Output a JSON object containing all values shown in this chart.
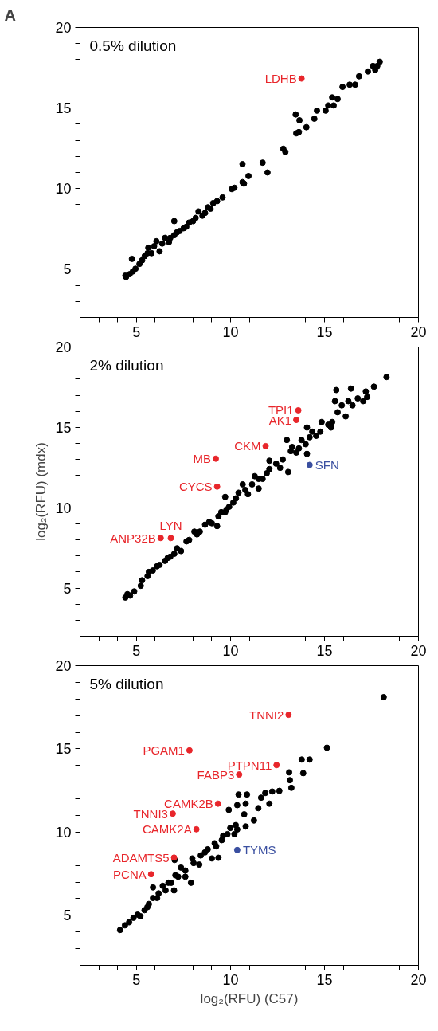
{
  "chart_data": [
    {
      "type": "scatter",
      "title": "0.5% dilution",
      "xlim": [
        2,
        20
      ],
      "ylim": [
        2,
        20
      ],
      "xticks": [
        {
          "value": 3,
          "label": null
        },
        {
          "value": 4,
          "label": null
        },
        5,
        {
          "value": 6,
          "label": null
        },
        {
          "value": 7,
          "label": null
        },
        {
          "value": 8,
          "label": null
        },
        {
          "value": 9,
          "label": null
        },
        10,
        {
          "value": 11,
          "label": null
        },
        {
          "value": 12,
          "label": null
        },
        {
          "value": 13,
          "label": null
        },
        {
          "value": 14,
          "label": null
        },
        15,
        {
          "value": 16,
          "label": null
        },
        {
          "value": 17,
          "label": null
        },
        {
          "value": 18,
          "label": null
        },
        {
          "value": 19,
          "label": null
        },
        20
      ],
      "yticks": [
        {
          "value": 3,
          "label": null
        },
        {
          "value": 4,
          "label": null
        },
        5,
        {
          "value": 6,
          "label": null
        },
        {
          "value": 7,
          "label": null
        },
        {
          "value": 8,
          "label": null
        },
        {
          "value": 9,
          "label": null
        },
        10,
        {
          "value": 11,
          "label": null
        },
        {
          "value": 12,
          "label": null
        },
        {
          "value": 13,
          "label": null
        },
        {
          "value": 14,
          "label": null
        },
        15,
        {
          "value": 16,
          "label": null
        },
        {
          "value": 17,
          "label": null
        },
        {
          "value": 18,
          "label": null
        },
        {
          "value": 19,
          "label": null
        },
        20
      ],
      "marker": "circle",
      "series": [
        {
          "color": "#000000",
          "x": [
            4.41,
            4.45,
            4.64,
            4.76,
            4.81,
            4.95,
            5.16,
            5.3,
            5.44,
            5.59,
            5.63,
            5.8,
            5.94,
            6.06,
            6.23,
            6.37,
            6.52,
            6.73,
            6.8,
            7.01,
            7.01,
            7.15,
            7.3,
            7.51,
            7.65,
            7.8,
            8.01,
            8.15,
            8.3,
            8.51,
            8.65,
            8.8,
            8.94,
            9.08,
            9.29,
            9.58,
            10.07,
            10.21,
            10.64,
            10.64,
            10.72,
            10.96,
            11.71,
            11.97,
            12.81,
            12.92,
            13.47,
            13.5,
            13.64,
            13.67,
            14.04,
            14.46,
            14.6,
            15.06,
            15.2,
            15.41,
            15.49,
            15.7,
            15.96,
            16.34,
            16.63,
            16.84,
            17.31,
            17.58,
            17.7,
            17.81,
            17.94
          ],
          "values": [
            4.6,
            4.52,
            4.69,
            5.64,
            4.86,
            5.03,
            5.33,
            5.55,
            5.81,
            5.99,
            6.33,
            5.99,
            6.42,
            6.73,
            6.11,
            6.59,
            6.94,
            6.68,
            6.94,
            7.98,
            7.11,
            7.28,
            7.37,
            7.54,
            7.63,
            7.89,
            7.98,
            8.18,
            8.58,
            8.32,
            8.49,
            8.84,
            8.75,
            9.1,
            9.22,
            9.45,
            9.97,
            10.05,
            11.52,
            10.4,
            10.31,
            10.78,
            11.61,
            11.0,
            12.47,
            12.27,
            14.6,
            13.43,
            13.51,
            14.24,
            13.81,
            14.34,
            14.84,
            14.84,
            15.16,
            15.66,
            15.16,
            15.56,
            16.31,
            16.45,
            16.45,
            16.97,
            17.27,
            17.61,
            17.37,
            17.61,
            17.87
          ]
        },
        {
          "color": "#e8262b",
          "x": [
            13.78
          ],
          "values": [
            16.83
          ]
        }
      ],
      "annotations": [
        "A",
        {
          "text": "LDHB",
          "x": 13.78,
          "y": 16.83
        }
      ]
    },
    {
      "type": "scatter",
      "title": "2% dilution",
      "ylabel": "log₂(RFU) (mdx)",
      "xlim": [
        2,
        20
      ],
      "ylim": [
        2,
        20
      ],
      "xticks": [
        {
          "value": 3,
          "label": null
        },
        {
          "value": 4,
          "label": null
        },
        5,
        {
          "value": 6,
          "label": null
        },
        {
          "value": 7,
          "label": null
        },
        {
          "value": 8,
          "label": null
        },
        {
          "value": 9,
          "label": null
        },
        10,
        {
          "value": 11,
          "label": null
        },
        {
          "value": 12,
          "label": null
        },
        {
          "value": 13,
          "label": null
        },
        {
          "value": 14,
          "label": null
        },
        15,
        {
          "value": 16,
          "label": null
        },
        {
          "value": 17,
          "label": null
        },
        {
          "value": 18,
          "label": null
        },
        {
          "value": 19,
          "label": null
        },
        20
      ],
      "yticks": [
        {
          "value": 3,
          "label": null
        },
        {
          "value": 4,
          "label": null
        },
        5,
        {
          "value": 6,
          "label": null
        },
        {
          "value": 7,
          "label": null
        },
        {
          "value": 8,
          "label": null
        },
        {
          "value": 9,
          "label": null
        },
        10,
        {
          "value": 11,
          "label": null
        },
        {
          "value": 12,
          "label": null
        },
        {
          "value": 13,
          "label": null
        },
        {
          "value": 14,
          "label": null
        },
        15,
        {
          "value": 16,
          "label": null
        },
        {
          "value": 17,
          "label": null
        },
        {
          "value": 18,
          "label": null
        },
        {
          "value": 19,
          "label": null
        },
        20
      ],
      "marker": "circle",
      "series": [
        {
          "color": "#000000",
          "x": [
            4.41,
            4.52,
            4.66,
            4.88,
            5.23,
            5.3,
            5.59,
            5.66,
            5.87,
            6.09,
            6.23,
            6.52,
            6.66,
            6.8,
            7.01,
            7.16,
            7.37,
            7.66,
            7.8,
            8.08,
            8.22,
            8.37,
            8.65,
            8.87,
            9.01,
            9.29,
            9.36,
            9.51,
            9.72,
            9.72,
            9.79,
            9.93,
            10.15,
            10.29,
            10.43,
            10.65,
            10.79,
            10.93,
            11.15,
            11.29,
            11.5,
            11.5,
            11.71,
            11.93,
            12.07,
            12.07,
            12.43,
            12.64,
            12.78,
            13.0,
            13.07,
            13.21,
            13.28,
            13.5,
            13.64,
            13.78,
            14.0,
            14.07,
            14.07,
            14.21,
            14.35,
            14.56,
            14.78,
            14.85,
            15.2,
            15.35,
            15.41,
            15.56,
            15.63,
            15.7,
            15.92,
            16.13,
            16.27,
            16.41,
            16.49,
            16.77,
            17.06,
            17.2,
            17.27,
            17.63,
            18.3
          ],
          "values": [
            4.41,
            4.62,
            4.53,
            4.79,
            5.14,
            5.48,
            5.74,
            6.0,
            6.09,
            6.35,
            6.44,
            6.69,
            6.87,
            6.95,
            7.13,
            7.47,
            7.3,
            7.9,
            7.99,
            8.51,
            8.34,
            8.51,
            8.94,
            9.11,
            9.03,
            8.85,
            9.46,
            9.72,
            9.72,
            10.67,
            9.89,
            10.06,
            10.32,
            10.58,
            10.93,
            11.45,
            11.1,
            10.84,
            11.45,
            11.96,
            11.19,
            11.79,
            11.79,
            12.14,
            12.92,
            12.4,
            12.74,
            12.48,
            13.0,
            14.21,
            12.22,
            13.52,
            13.78,
            13.43,
            13.69,
            14.21,
            13.95,
            14.99,
            13.35,
            14.38,
            14.73,
            14.47,
            14.73,
            15.33,
            15.16,
            14.99,
            15.33,
            16.63,
            17.32,
            15.94,
            16.37,
            15.68,
            16.63,
            17.41,
            16.37,
            16.8,
            16.63,
            17.23,
            16.89,
            17.53,
            18.13
          ]
        },
        {
          "color": "#e8262b",
          "x": [
            13.61,
            13.5,
            11.87,
            9.22,
            9.29,
            6.83,
            6.29
          ],
          "values": [
            16.06,
            15.46,
            13.83,
            13.05,
            11.31,
            8.11,
            8.11
          ]
        },
        {
          "color": "#3a4fa0",
          "x": [
            14.21
          ],
          "values": [
            12.66
          ]
        }
      ],
      "annotations": [
        {
          "text": "TPI1",
          "x": 13.61,
          "y": 16.06
        },
        {
          "text": "AK1",
          "x": 13.5,
          "y": 15.46
        },
        {
          "text": "CKM",
          "x": 11.87,
          "y": 13.83
        },
        {
          "text": "MB",
          "x": 9.22,
          "y": 13.05
        },
        {
          "text": "CYCS",
          "x": 9.29,
          "y": 11.31
        },
        {
          "text": "LYN",
          "x": 6.83,
          "y": 8.11
        },
        {
          "text": "ANP32B",
          "x": 6.29,
          "y": 8.11
        },
        {
          "text": "SFN",
          "x": 14.21,
          "y": 12.66
        }
      ]
    },
    {
      "type": "scatter",
      "title": "5% dilution",
      "xlabel": "log₂(RFU) (C57)",
      "xlim": [
        2,
        20
      ],
      "ylim": [
        2,
        20
      ],
      "xticks": [
        {
          "value": 3,
          "label": null
        },
        {
          "value": 4,
          "label": null
        },
        5,
        {
          "value": 6,
          "label": null
        },
        {
          "value": 7,
          "label": null
        },
        {
          "value": 8,
          "label": null
        },
        {
          "value": 9,
          "label": null
        },
        10,
        {
          "value": 11,
          "label": null
        },
        {
          "value": 12,
          "label": null
        },
        {
          "value": 13,
          "label": null
        },
        {
          "value": 14,
          "label": null
        },
        15,
        {
          "value": 16,
          "label": null
        },
        {
          "value": 17,
          "label": null
        },
        {
          "value": 18,
          "label": null
        },
        {
          "value": 19,
          "label": null
        },
        20
      ],
      "yticks": [
        {
          "value": 3,
          "label": null
        },
        {
          "value": 4,
          "label": null
        },
        5,
        {
          "value": 6,
          "label": null
        },
        {
          "value": 7,
          "label": null
        },
        {
          "value": 8,
          "label": null
        },
        {
          "value": 9,
          "label": null
        },
        10,
        {
          "value": 11,
          "label": null
        },
        {
          "value": 12,
          "label": null
        },
        {
          "value": 13,
          "label": null
        },
        {
          "value": 14,
          "label": null
        },
        15,
        {
          "value": 16,
          "label": null
        },
        {
          "value": 17,
          "label": null
        },
        {
          "value": 18,
          "label": null
        },
        {
          "value": 19,
          "label": null
        },
        20
      ],
      "marker": "circle",
      "series": [
        {
          "color": "#000000",
          "x": [
            4.13,
            4.39,
            4.61,
            4.84,
            5.06,
            5.21,
            5.43,
            5.58,
            5.66,
            5.88,
            5.88,
            6.1,
            6.18,
            6.4,
            6.55,
            6.7,
            6.85,
            7.0,
            7.03,
            7.07,
            7.22,
            7.37,
            7.6,
            7.6,
            7.9,
            7.97,
            8.04,
            8.34,
            8.42,
            8.64,
            8.79,
            9.01,
            9.16,
            9.24,
            9.36,
            9.54,
            9.61,
            9.84,
            9.91,
            9.99,
            10.21,
            10.28,
            10.36,
            10.36,
            10.43,
            10.73,
            10.81,
            10.81,
            10.88,
            11.25,
            11.48,
            11.63,
            11.85,
            12.07,
            12.22,
            12.6,
            13.12,
            13.16,
            13.24,
            13.79,
            13.87,
            14.21,
            15.13,
            18.15
          ],
          "values": [
            4.12,
            4.4,
            4.58,
            4.85,
            5.04,
            4.95,
            5.31,
            5.49,
            5.68,
            6.04,
            6.68,
            6.04,
            6.32,
            6.77,
            6.5,
            6.96,
            6.96,
            6.5,
            8.33,
            7.41,
            7.32,
            7.87,
            7.32,
            7.69,
            6.96,
            8.42,
            8.14,
            8.05,
            8.6,
            8.78,
            8.97,
            8.42,
            9.33,
            9.15,
            8.46,
            9.52,
            9.79,
            9.88,
            11.34,
            10.25,
            9.88,
            10.42,
            11.62,
            10.16,
            12.26,
            11.07,
            10.34,
            11.71,
            12.26,
            10.7,
            11.44,
            12.07,
            12.35,
            11.71,
            12.44,
            12.48,
            13.59,
            13.12,
            12.66,
            14.36,
            13.54,
            14.36,
            15.07,
            18.11
          ]
        },
        {
          "color": "#e8262b",
          "x": [
            13.09,
            7.82,
            12.45,
            10.46,
            9.34,
            6.93,
            8.19,
            7.0,
            5.78
          ],
          "values": [
            17.05,
            14.91,
            14.03,
            13.46,
            11.71,
            11.11,
            10.17,
            8.47,
            7.47
          ]
        },
        {
          "color": "#3a4fa0",
          "x": [
            10.36
          ],
          "values": [
            8.93
          ]
        }
      ],
      "annotations": [
        {
          "text": "TNNI2",
          "x": 13.09,
          "y": 17.05
        },
        {
          "text": "PGAM1",
          "x": 7.82,
          "y": 14.91
        },
        {
          "text": "PTPN11",
          "x": 12.45,
          "y": 14.03
        },
        {
          "text": "FABP3",
          "x": 10.46,
          "y": 13.46
        },
        {
          "text": "CAMK2B",
          "x": 9.34,
          "y": 11.71
        },
        {
          "text": "TNNI3",
          "x": 6.93,
          "y": 11.11
        },
        {
          "text": "CAMK2A",
          "x": 8.19,
          "y": 10.17
        },
        {
          "text": "ADAMTS5",
          "x": 7.0,
          "y": 8.47
        },
        {
          "text": "PCNA",
          "x": 5.78,
          "y": 7.47
        },
        {
          "text": "TYMS",
          "x": 10.36,
          "y": 8.93
        }
      ]
    }
  ]
}
